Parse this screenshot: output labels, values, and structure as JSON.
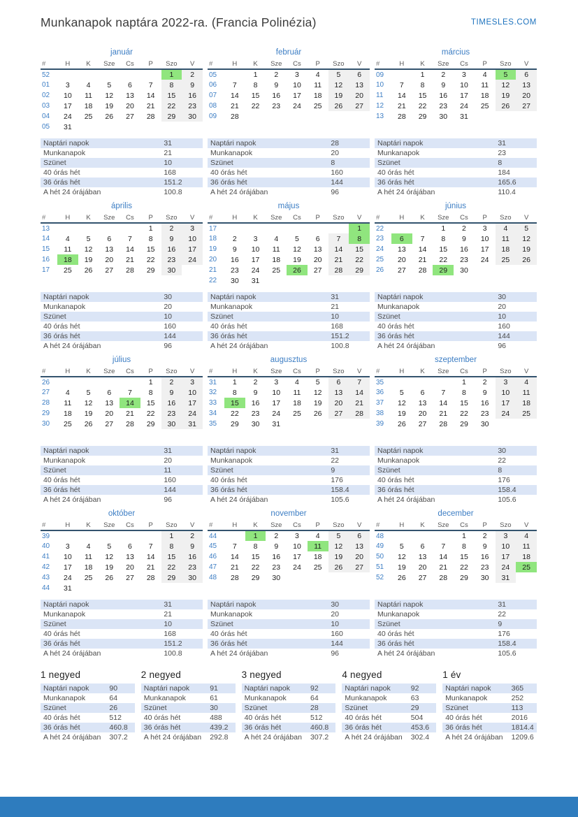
{
  "page": {
    "title": "Munkanapok naptára 2022-ra. (Francia Polinézia)",
    "brand": "TIMESLES.COM"
  },
  "colors": {
    "accent": "#3d7ec4",
    "brand_link": "#1e73be",
    "holiday_bg": "#90e57e",
    "weekend_bg": "#f0f0f0",
    "stripe_bg": "#dbe5f6",
    "header_line": "#33536e",
    "footer_bar": "#2e7cbe"
  },
  "calendar": {
    "day_headers": [
      "#",
      "H",
      "K",
      "Sze",
      "Cs",
      "P",
      "Szo",
      "V"
    ],
    "stat_labels": [
      "Naptári napok",
      "Munkanapok",
      "Szünet",
      "40 órás hét",
      "36 órás hét",
      "A hét 24 órájában"
    ],
    "months": [
      {
        "name": "január",
        "holidays": [
          1
        ],
        "weeks": [
          {
            "num": "52",
            "days": [
              "",
              "",
              "",
              "",
              "",
              "1",
              "2"
            ]
          },
          {
            "num": "01",
            "days": [
              "3",
              "4",
              "5",
              "6",
              "7",
              "8",
              "9"
            ]
          },
          {
            "num": "02",
            "days": [
              "10",
              "11",
              "12",
              "13",
              "14",
              "15",
              "16"
            ]
          },
          {
            "num": "03",
            "days": [
              "17",
              "18",
              "19",
              "20",
              "21",
              "22",
              "23"
            ]
          },
          {
            "num": "04",
            "days": [
              "24",
              "25",
              "26",
              "27",
              "28",
              "29",
              "30"
            ]
          },
          {
            "num": "05",
            "days": [
              "31",
              "",
              "",
              "",
              "",
              "",
              ""
            ]
          }
        ],
        "stats": [
          "31",
          "21",
          "10",
          "168",
          "151.2",
          "100.8"
        ]
      },
      {
        "name": "február",
        "holidays": [],
        "weeks": [
          {
            "num": "05",
            "days": [
              "",
              "1",
              "2",
              "3",
              "4",
              "5",
              "6"
            ]
          },
          {
            "num": "06",
            "days": [
              "7",
              "8",
              "9",
              "10",
              "11",
              "12",
              "13"
            ]
          },
          {
            "num": "07",
            "days": [
              "14",
              "15",
              "16",
              "17",
              "18",
              "19",
              "20"
            ]
          },
          {
            "num": "08",
            "days": [
              "21",
              "22",
              "23",
              "24",
              "25",
              "26",
              "27"
            ]
          },
          {
            "num": "09",
            "days": [
              "28",
              "",
              "",
              "",
              "",
              "",
              ""
            ]
          }
        ],
        "stats": [
          "28",
          "20",
          "8",
          "160",
          "144",
          "96"
        ]
      },
      {
        "name": "március",
        "holidays": [
          5
        ],
        "weeks": [
          {
            "num": "09",
            "days": [
              "",
              "1",
              "2",
              "3",
              "4",
              "5",
              "6"
            ]
          },
          {
            "num": "10",
            "days": [
              "7",
              "8",
              "9",
              "10",
              "11",
              "12",
              "13"
            ]
          },
          {
            "num": "11",
            "days": [
              "14",
              "15",
              "16",
              "17",
              "18",
              "19",
              "20"
            ]
          },
          {
            "num": "12",
            "days": [
              "21",
              "22",
              "23",
              "24",
              "25",
              "26",
              "27"
            ]
          },
          {
            "num": "13",
            "days": [
              "28",
              "29",
              "30",
              "31",
              "",
              "",
              ""
            ]
          }
        ],
        "stats": [
          "31",
          "23",
          "8",
          "184",
          "165.6",
          "110.4"
        ]
      },
      {
        "name": "április",
        "holidays": [
          18
        ],
        "weeks": [
          {
            "num": "13",
            "days": [
              "",
              "",
              "",
              "",
              "1",
              "2",
              "3"
            ]
          },
          {
            "num": "14",
            "days": [
              "4",
              "5",
              "6",
              "7",
              "8",
              "9",
              "10"
            ]
          },
          {
            "num": "15",
            "days": [
              "11",
              "12",
              "13",
              "14",
              "15",
              "16",
              "17"
            ]
          },
          {
            "num": "16",
            "days": [
              "18",
              "19",
              "20",
              "21",
              "22",
              "23",
              "24"
            ]
          },
          {
            "num": "17",
            "days": [
              "25",
              "26",
              "27",
              "28",
              "29",
              "30",
              ""
            ]
          }
        ],
        "stats": [
          "30",
          "20",
          "10",
          "160",
          "144",
          "96"
        ]
      },
      {
        "name": "május",
        "holidays": [
          1,
          8,
          26
        ],
        "weeks": [
          {
            "num": "17",
            "days": [
              "",
              "",
              "",
              "",
              "",
              "",
              "1"
            ]
          },
          {
            "num": "18",
            "days": [
              "2",
              "3",
              "4",
              "5",
              "6",
              "7",
              "8"
            ]
          },
          {
            "num": "19",
            "days": [
              "9",
              "10",
              "11",
              "12",
              "13",
              "14",
              "15"
            ]
          },
          {
            "num": "20",
            "days": [
              "16",
              "17",
              "18",
              "19",
              "20",
              "21",
              "22"
            ]
          },
          {
            "num": "21",
            "days": [
              "23",
              "24",
              "25",
              "26",
              "27",
              "28",
              "29"
            ]
          },
          {
            "num": "22",
            "days": [
              "30",
              "31",
              "",
              "",
              "",
              "",
              ""
            ]
          }
        ],
        "stats": [
          "31",
          "21",
          "10",
          "168",
          "151.2",
          "100.8"
        ]
      },
      {
        "name": "június",
        "holidays": [
          6,
          29
        ],
        "weeks": [
          {
            "num": "22",
            "days": [
              "",
              "",
              "1",
              "2",
              "3",
              "4",
              "5"
            ]
          },
          {
            "num": "23",
            "days": [
              "6",
              "7",
              "8",
              "9",
              "10",
              "11",
              "12"
            ]
          },
          {
            "num": "24",
            "days": [
              "13",
              "14",
              "15",
              "16",
              "17",
              "18",
              "19"
            ]
          },
          {
            "num": "25",
            "days": [
              "20",
              "21",
              "22",
              "23",
              "24",
              "25",
              "26"
            ]
          },
          {
            "num": "26",
            "days": [
              "27",
              "28",
              "29",
              "30",
              "",
              "",
              ""
            ]
          }
        ],
        "stats": [
          "30",
          "20",
          "10",
          "160",
          "144",
          "96"
        ]
      },
      {
        "name": "július",
        "holidays": [
          14
        ],
        "weeks": [
          {
            "num": "26",
            "days": [
              "",
              "",
              "",
              "",
              "1",
              "2",
              "3"
            ]
          },
          {
            "num": "27",
            "days": [
              "4",
              "5",
              "6",
              "7",
              "8",
              "9",
              "10"
            ]
          },
          {
            "num": "28",
            "days": [
              "11",
              "12",
              "13",
              "14",
              "15",
              "16",
              "17"
            ]
          },
          {
            "num": "29",
            "days": [
              "18",
              "19",
              "20",
              "21",
              "22",
              "23",
              "24"
            ]
          },
          {
            "num": "30",
            "days": [
              "25",
              "26",
              "27",
              "28",
              "29",
              "30",
              "31"
            ]
          }
        ],
        "stats": [
          "31",
          "20",
          "11",
          "160",
          "144",
          "96"
        ]
      },
      {
        "name": "augusztus",
        "holidays": [
          15
        ],
        "weeks": [
          {
            "num": "31",
            "days": [
              "1",
              "2",
              "3",
              "4",
              "5",
              "6",
              "7"
            ]
          },
          {
            "num": "32",
            "days": [
              "8",
              "9",
              "10",
              "11",
              "12",
              "13",
              "14"
            ]
          },
          {
            "num": "33",
            "days": [
              "15",
              "16",
              "17",
              "18",
              "19",
              "20",
              "21"
            ]
          },
          {
            "num": "34",
            "days": [
              "22",
              "23",
              "24",
              "25",
              "26",
              "27",
              "28"
            ]
          },
          {
            "num": "35",
            "days": [
              "29",
              "30",
              "31",
              "",
              "",
              "",
              ""
            ]
          }
        ],
        "stats": [
          "31",
          "22",
          "9",
          "176",
          "158.4",
          "105.6"
        ]
      },
      {
        "name": "szeptember",
        "holidays": [],
        "weeks": [
          {
            "num": "35",
            "days": [
              "",
              "",
              "",
              "1",
              "2",
              "3",
              "4"
            ]
          },
          {
            "num": "36",
            "days": [
              "5",
              "6",
              "7",
              "8",
              "9",
              "10",
              "11"
            ]
          },
          {
            "num": "37",
            "days": [
              "12",
              "13",
              "14",
              "15",
              "16",
              "17",
              "18"
            ]
          },
          {
            "num": "38",
            "days": [
              "19",
              "20",
              "21",
              "22",
              "23",
              "24",
              "25"
            ]
          },
          {
            "num": "39",
            "days": [
              "26",
              "27",
              "28",
              "29",
              "30",
              "",
              ""
            ]
          }
        ],
        "stats": [
          "30",
          "22",
          "8",
          "176",
          "158.4",
          "105.6"
        ]
      },
      {
        "name": "október",
        "holidays": [],
        "weeks": [
          {
            "num": "39",
            "days": [
              "",
              "",
              "",
              "",
              "",
              "1",
              "2"
            ]
          },
          {
            "num": "40",
            "days": [
              "3",
              "4",
              "5",
              "6",
              "7",
              "8",
              "9"
            ]
          },
          {
            "num": "41",
            "days": [
              "10",
              "11",
              "12",
              "13",
              "14",
              "15",
              "16"
            ]
          },
          {
            "num": "42",
            "days": [
              "17",
              "18",
              "19",
              "20",
              "21",
              "22",
              "23"
            ]
          },
          {
            "num": "43",
            "days": [
              "24",
              "25",
              "26",
              "27",
              "28",
              "29",
              "30"
            ]
          },
          {
            "num": "44",
            "days": [
              "31",
              "",
              "",
              "",
              "",
              "",
              ""
            ]
          }
        ],
        "stats": [
          "31",
          "21",
          "10",
          "168",
          "151.2",
          "100.8"
        ]
      },
      {
        "name": "november",
        "holidays": [
          1,
          11
        ],
        "weeks": [
          {
            "num": "44",
            "days": [
              "",
              "1",
              "2",
              "3",
              "4",
              "5",
              "6"
            ]
          },
          {
            "num": "45",
            "days": [
              "7",
              "8",
              "9",
              "10",
              "11",
              "12",
              "13"
            ]
          },
          {
            "num": "46",
            "days": [
              "14",
              "15",
              "16",
              "17",
              "18",
              "19",
              "20"
            ]
          },
          {
            "num": "47",
            "days": [
              "21",
              "22",
              "23",
              "24",
              "25",
              "26",
              "27"
            ]
          },
          {
            "num": "48",
            "days": [
              "28",
              "29",
              "30",
              "",
              "",
              "",
              ""
            ]
          }
        ],
        "stats": [
          "30",
          "20",
          "10",
          "160",
          "144",
          "96"
        ]
      },
      {
        "name": "december",
        "holidays": [
          25
        ],
        "weeks": [
          {
            "num": "48",
            "days": [
              "",
              "",
              "",
              "1",
              "2",
              "3",
              "4"
            ]
          },
          {
            "num": "49",
            "days": [
              "5",
              "6",
              "7",
              "8",
              "9",
              "10",
              "11"
            ]
          },
          {
            "num": "50",
            "days": [
              "12",
              "13",
              "14",
              "15",
              "16",
              "17",
              "18"
            ]
          },
          {
            "num": "51",
            "days": [
              "19",
              "20",
              "21",
              "22",
              "23",
              "24",
              "25"
            ]
          },
          {
            "num": "52",
            "days": [
              "26",
              "27",
              "28",
              "29",
              "30",
              "31",
              ""
            ]
          }
        ],
        "stats": [
          "31",
          "22",
          "9",
          "176",
          "158.4",
          "105.6"
        ]
      }
    ],
    "summaries": [
      {
        "name": "1 negyed",
        "stats": [
          "90",
          "64",
          "26",
          "512",
          "460.8",
          "307.2"
        ]
      },
      {
        "name": "2 negyed",
        "stats": [
          "91",
          "61",
          "30",
          "488",
          "439.2",
          "292.8"
        ]
      },
      {
        "name": "3 negyed",
        "stats": [
          "92",
          "64",
          "28",
          "512",
          "460.8",
          "307.2"
        ]
      },
      {
        "name": "4 negyed",
        "stats": [
          "92",
          "63",
          "29",
          "504",
          "453.6",
          "302.4"
        ]
      },
      {
        "name": "1 év",
        "stats": [
          "365",
          "252",
          "113",
          "2016",
          "1814.4",
          "1209.6"
        ]
      }
    ]
  }
}
